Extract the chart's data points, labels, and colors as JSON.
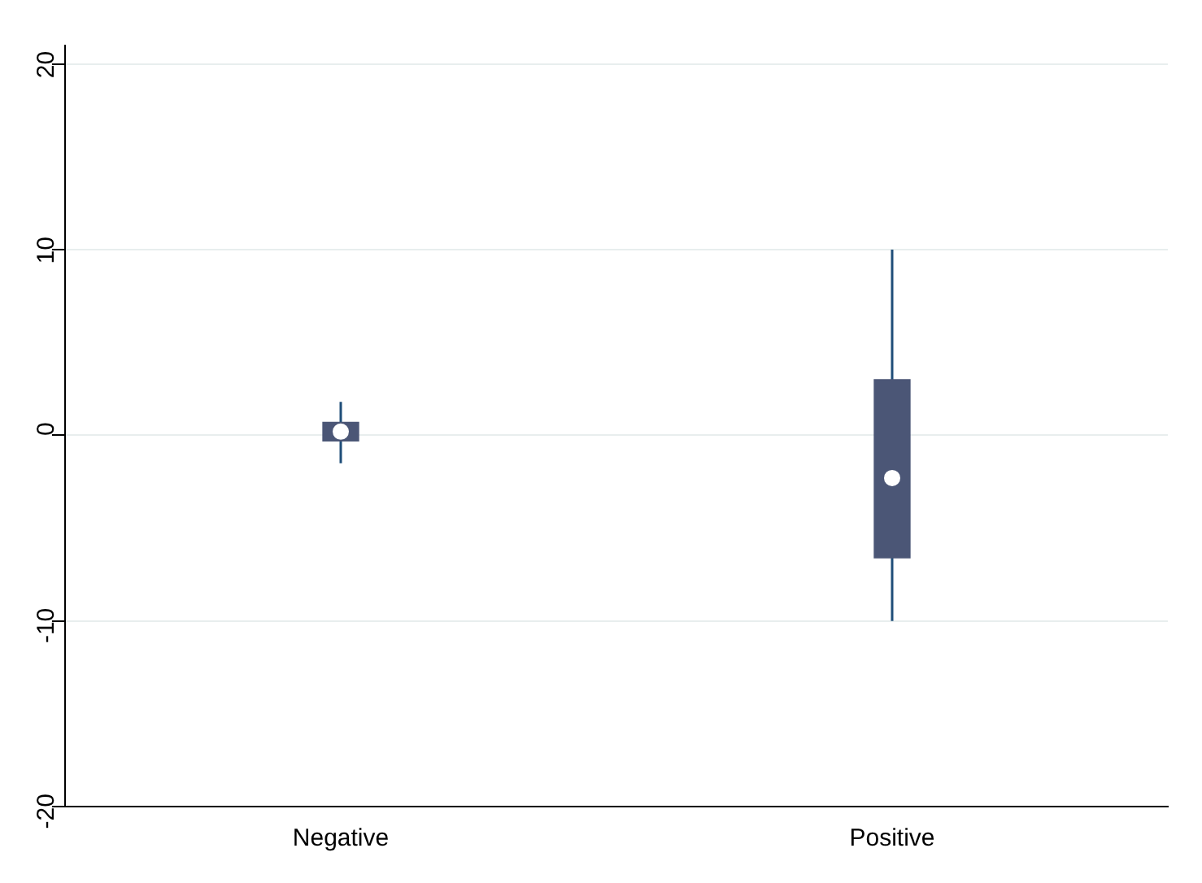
{
  "chart_data": {
    "type": "box",
    "categories": [
      "Negative",
      "Positive"
    ],
    "boxes": [
      {
        "low": -1.5,
        "q1": -0.3,
        "median": 0.2,
        "q3": 0.7,
        "high": 1.8
      },
      {
        "low": -10,
        "q1": -6.6,
        "median": -2.3,
        "q3": 3.0,
        "high": 10
      }
    ],
    "color": "#4b5676",
    "ylim": [
      -20,
      21
    ],
    "yticks": [
      -20,
      -10,
      0,
      10,
      20
    ],
    "grid": "y"
  }
}
